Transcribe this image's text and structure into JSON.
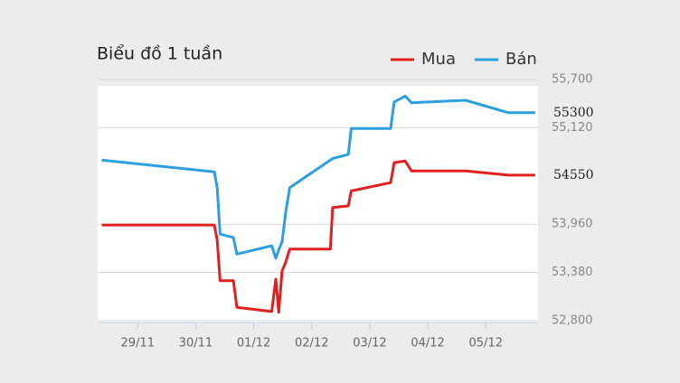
{
  "chart_data": {
    "type": "line",
    "title": "Biểu đồ 1 tuần",
    "x": [
      -0.62,
      1.32,
      1.37,
      1.42,
      1.65,
      1.71,
      2.31,
      2.38,
      2.43,
      2.49,
      2.55,
      2.62,
      3.32,
      3.36,
      3.63,
      3.68,
      4.36,
      4.42,
      4.61,
      4.72,
      5.65,
      6.39,
      6.85
    ],
    "series": [
      {
        "name": "Mua",
        "color": "#e0201e",
        "values": [
          53950,
          53950,
          53770,
          53280,
          53280,
          52960,
          52910,
          53300,
          52900,
          53400,
          53500,
          53660,
          53660,
          54160,
          54180,
          54360,
          54460,
          54700,
          54720,
          54600,
          54600,
          54550,
          54550
        ]
      },
      {
        "name": "Bán",
        "color": "#2b9fe0",
        "values": [
          54730,
          54590,
          54400,
          53840,
          53800,
          53600,
          53700,
          53550,
          53650,
          53750,
          54100,
          54400,
          54730,
          54750,
          54800,
          55110,
          55110,
          55430,
          55500,
          55420,
          55450,
          55300,
          55300
        ]
      }
    ],
    "xlim": [
      -0.69,
      6.9
    ],
    "xticks": [
      {
        "value": 0,
        "label": "29/11"
      },
      {
        "value": 1,
        "label": "30/11"
      },
      {
        "value": 2,
        "label": "01/12"
      },
      {
        "value": 3,
        "label": "02/12"
      },
      {
        "value": 4,
        "label": "03/12"
      },
      {
        "value": 5,
        "label": "04/12"
      },
      {
        "value": 6,
        "label": "05/12"
      }
    ],
    "ylim": [
      52800,
      55700
    ],
    "yticks": [
      {
        "value": 52800,
        "label": "52,800"
      },
      {
        "value": 53380,
        "label": "53,380"
      },
      {
        "value": 53960,
        "label": "53,960"
      },
      {
        "value": 55120,
        "label": "55,120"
      },
      {
        "value": 55700,
        "label": "55,700"
      }
    ],
    "grid": true
  }
}
